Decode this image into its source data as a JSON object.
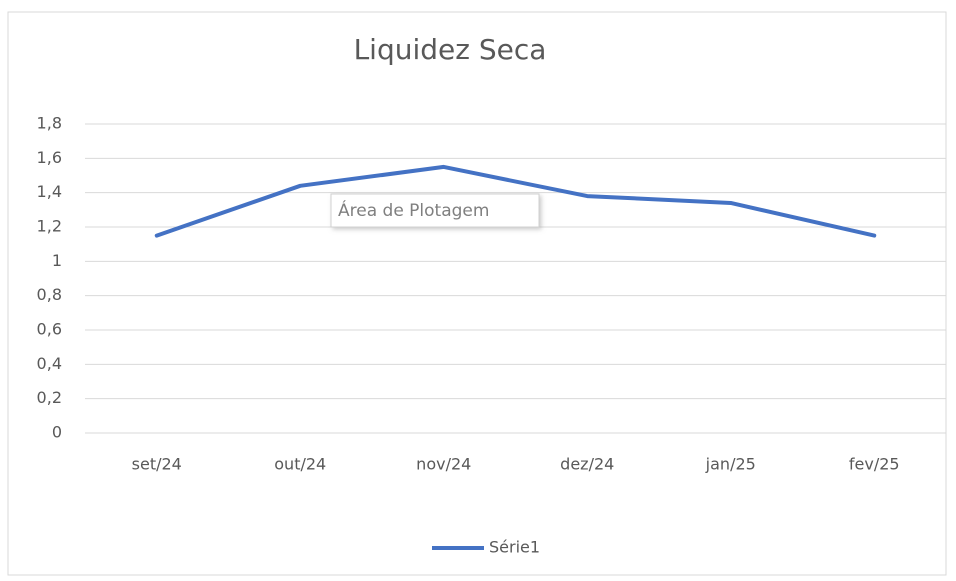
{
  "chart_data": {
    "type": "line",
    "title": "Liquidez Seca",
    "categories": [
      "set/24",
      "out/24",
      "nov/24",
      "dez/24",
      "jan/25",
      "fev/25"
    ],
    "series": [
      {
        "name": "Série1",
        "color": "#4472c4",
        "values": [
          1.15,
          1.44,
          1.55,
          1.38,
          1.34,
          1.15
        ]
      }
    ],
    "ylim": [
      0,
      1.8
    ],
    "yticks": [
      0,
      {
        "value": 0.2,
        "label": "0,2"
      },
      {
        "value": 0.4,
        "label": "0,4"
      },
      {
        "value": 0.6,
        "label": "0,6"
      },
      {
        "value": 0.8,
        "label": "0,8"
      },
      1,
      {
        "value": 1.2,
        "label": "1,2"
      },
      {
        "value": 1.4,
        "label": "1,4"
      },
      {
        "value": 1.6,
        "label": "1,6"
      },
      {
        "value": 1.8,
        "label": "1,8"
      }
    ],
    "grid": true,
    "legend": "bottom",
    "tooltip": "Área de Plotagem"
  }
}
